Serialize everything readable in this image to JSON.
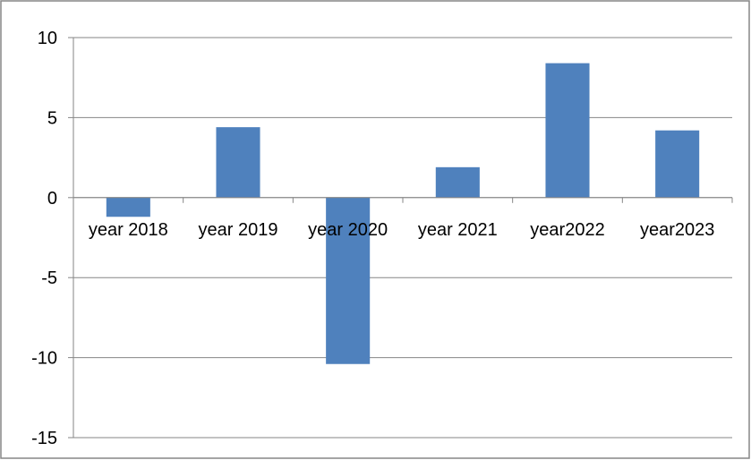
{
  "chart_data": {
    "type": "bar",
    "title": "",
    "xlabel": "",
    "ylabel": "",
    "categories": [
      "year 2018",
      "year 2019",
      "year 2020",
      "year 2021",
      "year2022",
      "year2023"
    ],
    "values": [
      -1.2,
      4.4,
      -10.4,
      1.9,
      8.4,
      4.2
    ],
    "ylim": [
      -15,
      10
    ],
    "yticks": [
      10,
      5,
      0,
      -5,
      -10,
      -15
    ],
    "grid": true,
    "legend": "none",
    "colors": {
      "bar": "#4F81BD",
      "bar_edge": "#3E6CA3",
      "gridline": "#868686",
      "axis": "#868686",
      "frame": "#868686"
    }
  }
}
